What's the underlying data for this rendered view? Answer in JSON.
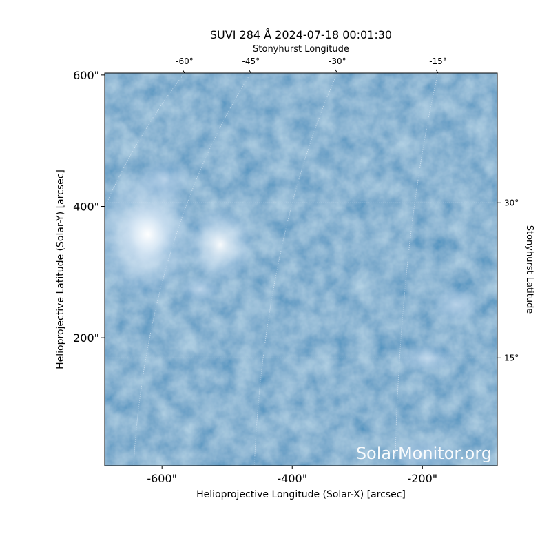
{
  "chart_data": {
    "type": "image",
    "title": "SUVI 284 Å 2024-07-18 00:01:30",
    "xlabel": "Helioprojective Longitude (Solar-X) [arcsec]",
    "ylabel": "Helioprojective Latitude (Solar-Y) [arcsec]",
    "x2label": "Stonyhurst Longitude",
    "y2label": "Stonyhurst Latitude",
    "xlim": [
      -688,
      -85
    ],
    "ylim": [
      5,
      603
    ],
    "xticks": [
      {
        "value": -600,
        "label": "-600\""
      },
      {
        "value": -400,
        "label": "-400\""
      },
      {
        "value": -200,
        "label": "-200\""
      }
    ],
    "yticks": [
      {
        "value": 200,
        "label": "200\""
      },
      {
        "value": 400,
        "label": "400\""
      },
      {
        "value": 600,
        "label": "600\""
      }
    ],
    "x2ticks": [
      {
        "value": -60,
        "label": "-60°"
      },
      {
        "value": -45,
        "label": "-45°"
      },
      {
        "value": -30,
        "label": "-30°"
      },
      {
        "value": -15,
        "label": "-15°"
      }
    ],
    "y2ticks": [
      {
        "value": 30,
        "label": "30°"
      },
      {
        "value": 15,
        "label": "15°"
      }
    ],
    "grid": true,
    "watermark": "SolarMonitor.org"
  }
}
